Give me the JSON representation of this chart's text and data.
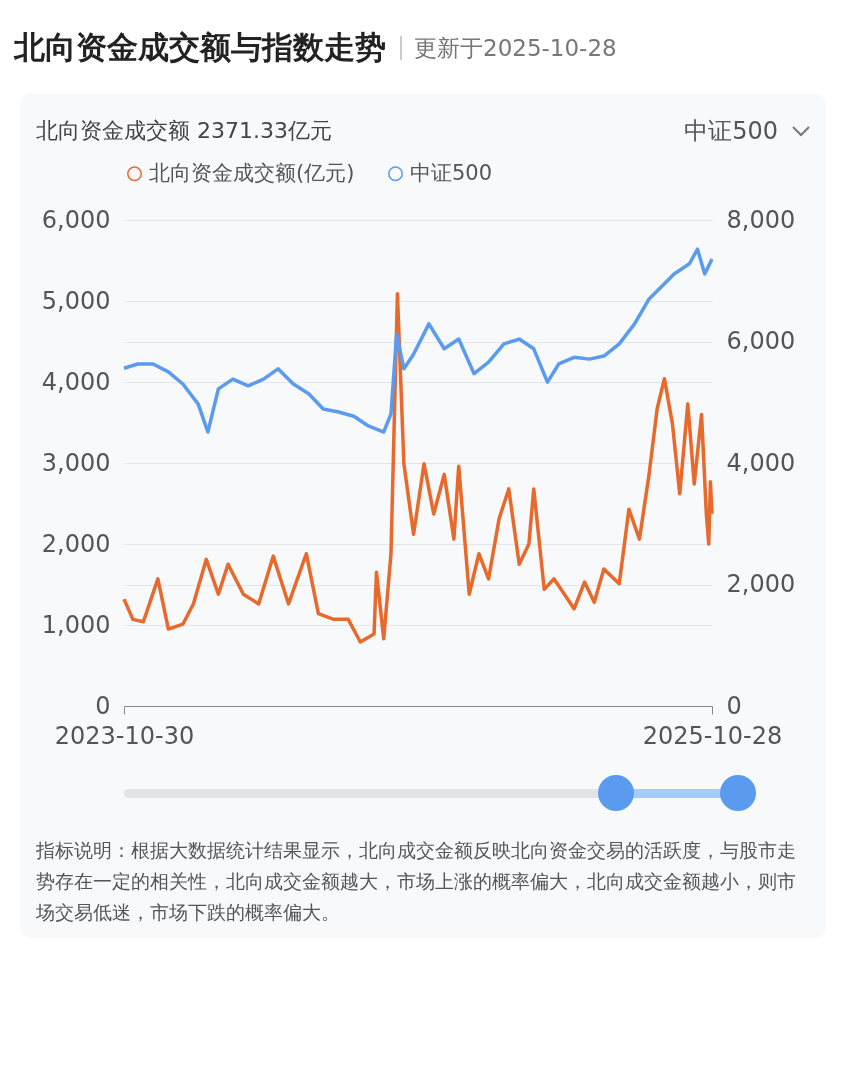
{
  "chart_data": {
    "type": "line",
    "title": "北向资金成交额与指数走势",
    "subtitle": "更新于2025-10-28",
    "annotations": [
      "北向资金成交额 2371.33亿元",
      "中证500",
      "指标说明：根据大数据统计结果显示，北向成交金额反映北向资金交易的活跃度，与股市走势存在一定的相关性，北向成交金额越大，市场上涨的概率偏大，北向成交金额越小，则市场交易低迷，市场下跌的概率偏大。"
    ],
    "xlim": [
      "2023-10-30",
      "2025-10-28"
    ],
    "xticks": [
      {
        "value": "2023-10-30",
        "label": "2023-10-30"
      },
      {
        "value": "2025-10-28",
        "label": "2025-10-28"
      }
    ],
    "ylim": [
      0,
      6000
    ],
    "yticks": [
      {
        "value": 0,
        "label": "0"
      },
      {
        "value": 1000,
        "label": "1,000"
      },
      {
        "value": 2000,
        "label": "2,000"
      },
      {
        "value": 3000,
        "label": "3,000"
      },
      {
        "value": 4000,
        "label": "4,000"
      },
      {
        "value": 5000,
        "label": "5,000"
      },
      {
        "value": 6000,
        "label": "6,000"
      }
    ],
    "y2lim": [
      0,
      8000
    ],
    "y2ticks": [
      {
        "value": 0,
        "label": "0"
      },
      {
        "value": 2000,
        "label": "2,000"
      },
      {
        "value": 4000,
        "label": "4,000"
      },
      {
        "value": 6000,
        "label": "6,000"
      },
      {
        "value": 8000,
        "label": "8,000"
      }
    ],
    "grid": true,
    "legend": "top left",
    "series": [
      {
        "name": "北向资金成交额(亿元)",
        "color": "#e8692c",
        "x": [
          "2023-10-30",
          "2023-11-10",
          "2023-11-23",
          "2023-12-11",
          "2023-12-24",
          "2024-01-11",
          "2024-01-24",
          "2024-02-09",
          "2024-02-24",
          "2024-03-07",
          "2024-03-26",
          "2024-04-14",
          "2024-05-02",
          "2024-05-21",
          "2024-06-12",
          "2024-06-27",
          "2024-07-16",
          "2024-08-03",
          "2024-08-18",
          "2024-09-04",
          "2024-09-07",
          "2024-09-16",
          "2024-09-25",
          "2024-10-03",
          "2024-10-11",
          "2024-10-23",
          "2024-11-05",
          "2024-11-17",
          "2024-11-30",
          "2024-12-12",
          "2024-12-18",
          "2024-12-31",
          "2025-01-12",
          "2025-01-24",
          "2025-02-06",
          "2025-02-18",
          "2025-03-03",
          "2025-03-15",
          "2025-03-21",
          "2025-04-03",
          "2025-04-15",
          "2025-04-28",
          "2025-05-10",
          "2025-05-23",
          "2025-06-04",
          "2025-06-16",
          "2025-07-05",
          "2025-07-17",
          "2025-07-30",
          "2025-08-11",
          "2025-08-21",
          "2025-08-30",
          "2025-09-09",
          "2025-09-18",
          "2025-09-28",
          "2025-10-06",
          "2025-10-15",
          "2025-10-21",
          "2025-10-24",
          "2025-10-26",
          "2025-10-28"
        ],
        "values": [
          1320,
          1070,
          1040,
          1570,
          950,
          1010,
          1260,
          1810,
          1380,
          1750,
          1380,
          1260,
          1850,
          1260,
          1880,
          1140,
          1070,
          1070,
          790,
          890,
          1650,
          830,
          1880,
          5090,
          2990,
          2120,
          2990,
          2370,
          2860,
          2060,
          2960,
          1380,
          1880,
          1570,
          2310,
          2680,
          1750,
          2000,
          2680,
          1440,
          1570,
          1380,
          1200,
          1530,
          1280,
          1690,
          1510,
          2430,
          2060,
          2860,
          3670,
          4040,
          3480,
          2620,
          3730,
          2740,
          3600,
          2370,
          2000,
          2770,
          2371
        ]
      },
      {
        "name": "中证500",
        "color": "#5b9bef",
        "axis": "y2",
        "x": [
          "2023-10-30",
          "2023-11-16",
          "2023-12-05",
          "2023-12-24",
          "2024-01-11",
          "2024-01-30",
          "2024-02-11",
          "2024-02-24",
          "2024-03-13",
          "2024-04-01",
          "2024-04-20",
          "2024-05-08",
          "2024-05-27",
          "2024-06-15",
          "2024-07-03",
          "2024-07-22",
          "2024-08-10",
          "2024-08-28",
          "2024-09-16",
          "2024-09-25",
          "2024-10-02",
          "2024-10-11",
          "2024-10-23",
          "2024-11-11",
          "2024-11-30",
          "2024-12-18",
          "2025-01-06",
          "2025-01-24",
          "2025-02-12",
          "2025-03-03",
          "2025-03-21",
          "2025-04-07",
          "2025-04-21",
          "2025-05-10",
          "2025-05-29",
          "2025-06-16",
          "2025-07-05",
          "2025-07-24",
          "2025-08-11",
          "2025-08-30",
          "2025-09-11",
          "2025-09-30",
          "2025-10-10",
          "2025-10-19",
          "2025-10-28"
        ],
        "values": [
          5560,
          5630,
          5630,
          5500,
          5300,
          4970,
          4510,
          5220,
          5380,
          5270,
          5380,
          5550,
          5300,
          5140,
          4890,
          4840,
          4770,
          4610,
          4510,
          4810,
          6120,
          5550,
          5790,
          6290,
          5880,
          6040,
          5470,
          5660,
          5960,
          6040,
          5880,
          5330,
          5630,
          5740,
          5710,
          5760,
          5960,
          6290,
          6700,
          6950,
          7110,
          7280,
          7520,
          7110,
          7360
        ]
      }
    ]
  }
}
